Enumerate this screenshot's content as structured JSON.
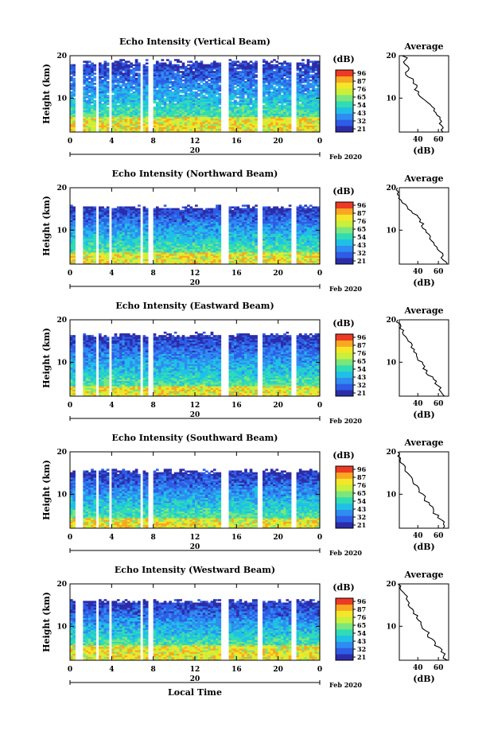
{
  "chart_data": {
    "type": "heatmap",
    "x_axis": {
      "label": "Local Time",
      "ticks": [
        "0",
        "4",
        "8",
        "12",
        "16",
        "20",
        "0"
      ],
      "range_hours": [
        0,
        24
      ],
      "date_label": "20",
      "month_year": "Feb 2020"
    },
    "y_axis": {
      "label": "Height (km)",
      "range_km": [
        2,
        20
      ],
      "ticks": [
        "20",
        "10"
      ]
    },
    "colorbar": {
      "unit": "(dB)",
      "ticks": [
        "96",
        "87",
        "76",
        "65",
        "54",
        "43",
        "32",
        "21"
      ],
      "colors": [
        "#2c2ca8",
        "#2e5ce6",
        "#2f8cf0",
        "#20c0e6",
        "#30dcb4",
        "#7ce67c",
        "#c8f03c",
        "#f4e628",
        "#f8a820",
        "#ee3a24"
      ]
    },
    "profile": {
      "title": "Average",
      "xlabel": "(dB)",
      "xticks": [
        "40",
        "60"
      ],
      "yticks": [
        "20",
        "10"
      ]
    },
    "data_gaps_hours": [
      [
        0.5,
        1.2
      ],
      [
        2.5,
        2.8
      ],
      [
        3.8,
        4.0
      ],
      [
        6.7,
        7.0
      ],
      [
        7.5,
        8.0
      ],
      [
        14.6,
        15.2
      ],
      [
        18.0,
        18.6
      ],
      [
        21.3,
        21.8
      ]
    ],
    "panels": [
      {
        "title": "Echo Intensity (Vertical Beam)",
        "top_km": 18.5,
        "low_km": [
          3,
          5.5
        ],
        "profile_km": [
          2,
          3,
          4,
          5,
          6,
          7,
          8,
          9,
          10,
          11,
          12,
          13,
          14,
          15,
          16,
          17,
          18,
          19,
          20
        ],
        "profile_db": [
          66,
          64,
          60,
          63,
          58,
          55,
          54,
          50,
          45,
          40,
          38,
          39,
          37,
          32,
          28,
          30,
          27,
          29,
          26
        ]
      },
      {
        "title": "Echo Intensity (Northward Beam)",
        "top_km": 15.5,
        "low_km": [
          2,
          5
        ],
        "profile_km": [
          2,
          3,
          4,
          5,
          6,
          7,
          8,
          9,
          10,
          11,
          12,
          13,
          14,
          15,
          16,
          17,
          18,
          19,
          20
        ],
        "profile_db": [
          68,
          66,
          64,
          60,
          58,
          55,
          52,
          50,
          48,
          45,
          42,
          40,
          36,
          30,
          27,
          25,
          22,
          21,
          21
        ]
      },
      {
        "title": "Echo Intensity (Eastward Beam)",
        "top_km": 16.5,
        "low_km": [
          2,
          4.5
        ],
        "profile_km": [
          2,
          3,
          4,
          5,
          6,
          7,
          8,
          9,
          10,
          11,
          12,
          13,
          14,
          15,
          16,
          17,
          18,
          19,
          20
        ],
        "profile_db": [
          66,
          64,
          62,
          58,
          54,
          51,
          48,
          46,
          44,
          41,
          39,
          36,
          34,
          30,
          28,
          25,
          23,
          22,
          21
        ]
      },
      {
        "title": "Echo Intensity (Southward Beam)",
        "top_km": 15.5,
        "low_km": [
          2,
          4.5
        ],
        "profile_km": [
          2,
          3,
          4,
          5,
          6,
          7,
          8,
          9,
          10,
          11,
          12,
          13,
          14,
          15,
          16,
          17,
          18,
          19,
          20
        ],
        "profile_db": [
          66,
          65,
          62,
          59,
          56,
          53,
          50,
          47,
          44,
          40,
          38,
          35,
          33,
          31,
          27,
          25,
          23,
          22,
          21
        ]
      },
      {
        "title": "Echo Intensity (Westward Beam)",
        "top_km": 16,
        "low_km": [
          2,
          5.5
        ],
        "profile_km": [
          2,
          3,
          4,
          5,
          6,
          7,
          8,
          9,
          10,
          11,
          12,
          13,
          14,
          15,
          16,
          17,
          18,
          19,
          20
        ],
        "profile_db": [
          68,
          66,
          64,
          60,
          56,
          53,
          50,
          47,
          44,
          42,
          40,
          37,
          35,
          32,
          29,
          30,
          26,
          23,
          22
        ]
      }
    ]
  }
}
